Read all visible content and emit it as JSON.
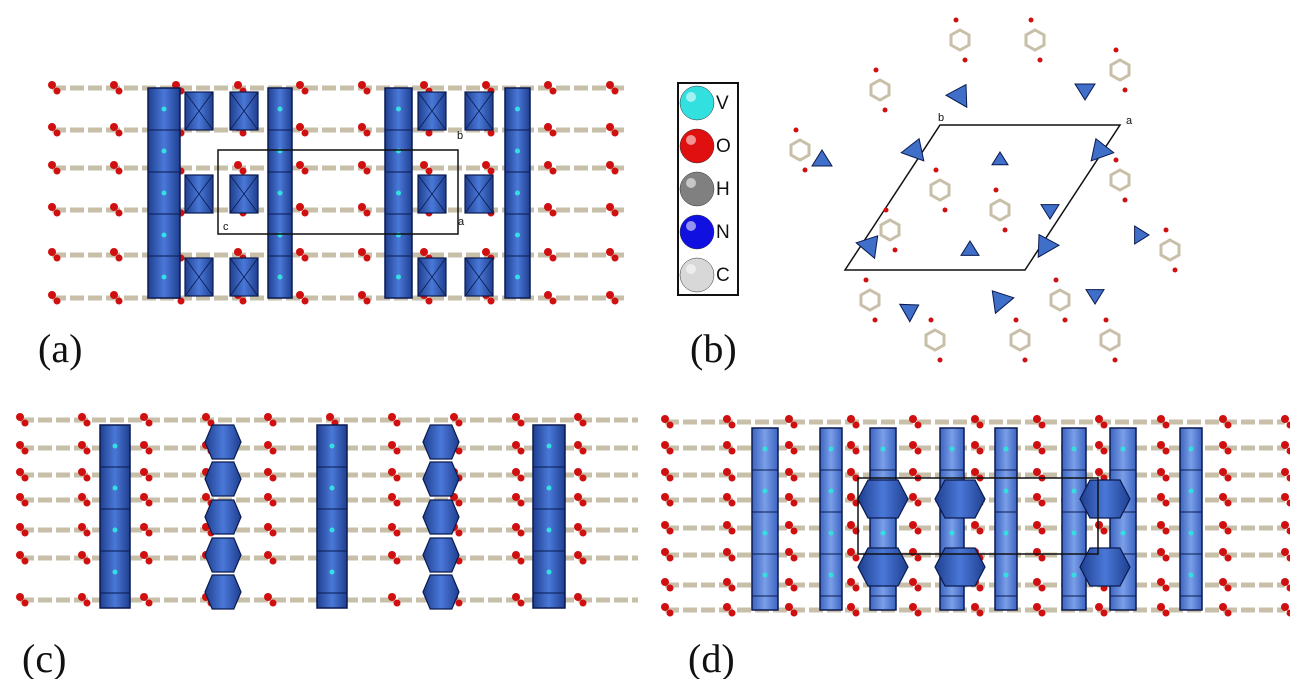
{
  "panels": [
    {
      "label": "(a)"
    },
    {
      "label": "(b)"
    },
    {
      "label": "(c)"
    },
    {
      "label": "(d)"
    }
  ],
  "legend": [
    {
      "element": "V",
      "color": "#33e0e0"
    },
    {
      "element": "O",
      "color": "#e01010"
    },
    {
      "element": "H",
      "color": "#808080"
    },
    {
      "element": "N",
      "color": "#1010e0"
    },
    {
      "element": "C",
      "color": "#d8d8d8"
    }
  ],
  "axes_a": [
    "b",
    "c",
    "a"
  ],
  "axes_b": [
    "a",
    "b"
  ]
}
